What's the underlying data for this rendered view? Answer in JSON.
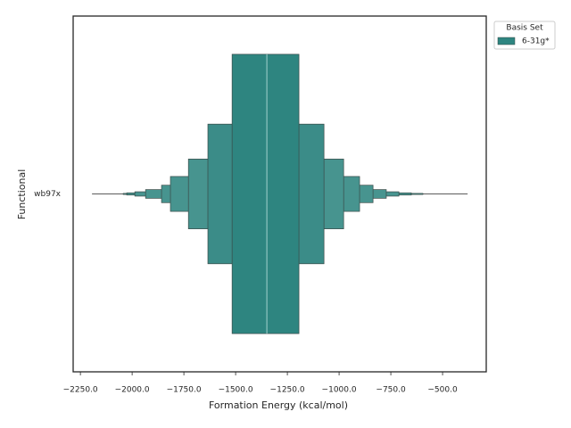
{
  "chart_data": {
    "type": "boxen",
    "x_label": "Formation Energy (kcal/mol)",
    "y_label": "Functional",
    "categories": [
      "wb97x"
    ],
    "legend_title": "Basis Set",
    "legend_position": "outside upper right",
    "xlim": [
      -2285,
      -289
    ],
    "xticks": [
      {
        "value": -2250,
        "label": "−2250.0"
      },
      {
        "value": -2000,
        "label": "−2000.0"
      },
      {
        "value": -1750,
        "label": "−1750.0"
      },
      {
        "value": -1500,
        "label": "−1500.0"
      },
      {
        "value": -1250,
        "label": "−1250.0"
      },
      {
        "value": -1000,
        "label": "−1000.0"
      },
      {
        "value": -750,
        "label": "−750.0"
      },
      {
        "value": -500,
        "label": "−500.0"
      }
    ],
    "series": [
      {
        "name": "6-31g*",
        "color": "#2e8580",
        "median": -1349,
        "boxes": [
          {
            "lo": -1517,
            "hi": -1194
          },
          {
            "lo": -1634,
            "hi": -1073
          },
          {
            "lo": -1728,
            "hi": -978
          },
          {
            "lo": -1815,
            "hi": -901
          },
          {
            "lo": -1858,
            "hi": -836
          },
          {
            "lo": -1935,
            "hi": -772
          },
          {
            "lo": -1987,
            "hi": -711
          },
          {
            "lo": -2026,
            "hi": -651
          },
          {
            "lo": -2043,
            "hi": -595
          }
        ],
        "whisker": [
          -2194,
          -379
        ]
      }
    ]
  }
}
